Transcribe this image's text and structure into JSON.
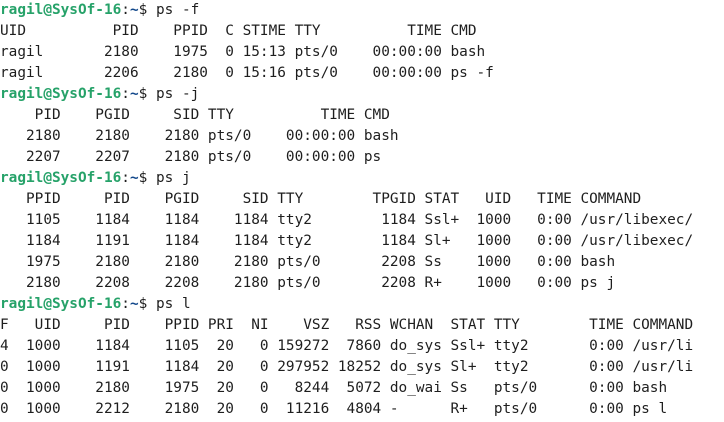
{
  "colors": {
    "background": "#ffffff",
    "text": "#1e1e1e",
    "prompt_user": "#26a269",
    "prompt_path": "#12488b"
  },
  "prompt": {
    "user_host": "ragil@SysOf-16",
    "sep": ":",
    "path": "~",
    "suffix": "$ "
  },
  "lines": [
    {
      "type": "prompt",
      "cmd": "ps -f"
    },
    {
      "type": "output",
      "text": "UID          PID    PPID  C STIME TTY          TIME CMD"
    },
    {
      "type": "output",
      "text": "ragil       2180    1975  0 15:13 pts/0    00:00:00 bash"
    },
    {
      "type": "output",
      "text": "ragil       2206    2180  0 15:16 pts/0    00:00:00 ps -f"
    },
    {
      "type": "prompt",
      "cmd": "ps -j"
    },
    {
      "type": "output",
      "text": "    PID    PGID     SID TTY          TIME CMD"
    },
    {
      "type": "output",
      "text": "   2180    2180    2180 pts/0    00:00:00 bash"
    },
    {
      "type": "output",
      "text": "   2207    2207    2180 pts/0    00:00:00 ps"
    },
    {
      "type": "prompt",
      "cmd": "ps j"
    },
    {
      "type": "output",
      "text": "   PPID     PID    PGID     SID TTY        TPGID STAT   UID   TIME COMMAND"
    },
    {
      "type": "output",
      "text": "   1105    1184    1184    1184 tty2        1184 Ssl+  1000   0:00 /usr/libexec/"
    },
    {
      "type": "output",
      "text": "   1184    1191    1184    1184 tty2        1184 Sl+   1000   0:00 /usr/libexec/"
    },
    {
      "type": "output",
      "text": "   1975    2180    2180    2180 pts/0       2208 Ss    1000   0:00 bash"
    },
    {
      "type": "output",
      "text": "   2180    2208    2208    2180 pts/0       2208 R+    1000   0:00 ps j"
    },
    {
      "type": "prompt",
      "cmd": "ps l"
    },
    {
      "type": "output",
      "text": "F   UID     PID    PPID PRI  NI    VSZ   RSS WCHAN  STAT TTY        TIME COMMAND"
    },
    {
      "type": "output",
      "text": "4  1000    1184    1105  20   0 159272  7860 do_sys Ssl+ tty2       0:00 /usr/li"
    },
    {
      "type": "output",
      "text": "0  1000    1191    1184  20   0 297952 18252 do_sys Sl+  tty2       0:00 /usr/li"
    },
    {
      "type": "output",
      "text": "0  1000    2180    1975  20   0   8244  5072 do_wai Ss   pts/0      0:00 bash"
    },
    {
      "type": "output",
      "text": "0  1000    2212    2180  20   0  11216  4804 -      R+   pts/0      0:00 ps l"
    }
  ]
}
